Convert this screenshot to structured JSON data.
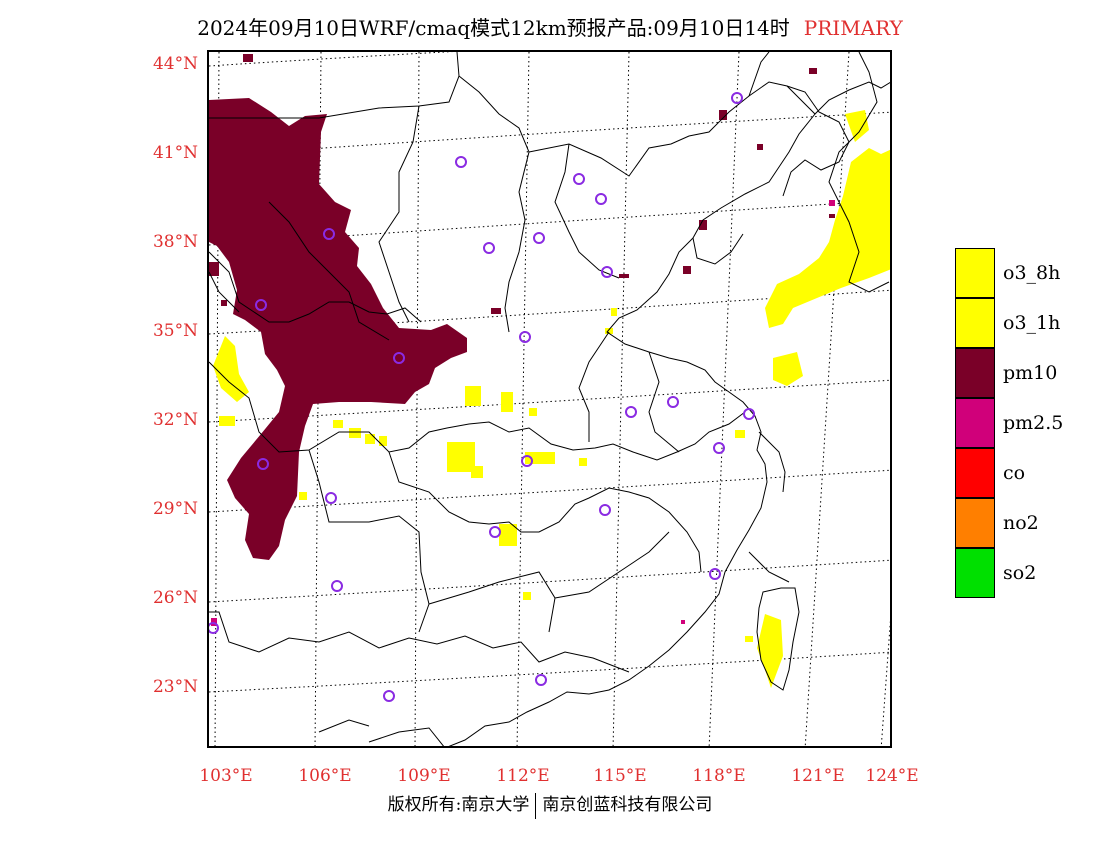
{
  "title": {
    "text": "2024年09月10日WRF/cmaq模式12km预报产品:09月10日14时",
    "tag": "PRIMARY"
  },
  "axes": {
    "lat_labels": [
      "44°N",
      "41°N",
      "38°N",
      "35°N",
      "32°N",
      "29°N",
      "26°N",
      "23°N"
    ],
    "lon_labels": [
      "103°E",
      "106°E",
      "109°E",
      "112°E",
      "115°E",
      "118°E",
      "121°E",
      "124°E"
    ]
  },
  "legend": [
    {
      "label": "o3_8h",
      "color": "#ffff00"
    },
    {
      "label": "o3_1h",
      "color": "#ffff00"
    },
    {
      "label": "pm10",
      "color": "#7a0028"
    },
    {
      "label": "pm2.5",
      "color": "#d0007a"
    },
    {
      "label": "co",
      "color": "#ff0000"
    },
    {
      "label": "no2",
      "color": "#ff7f00"
    },
    {
      "label": "so2",
      "color": "#00e000"
    }
  ],
  "footer": {
    "left": "版权所有:南京大学",
    "right": "南京创蓝科技有限公司"
  },
  "colors": {
    "pm10": "#7a0028",
    "o3": "#ffff00",
    "station_ring": "#8a2be2",
    "accent_red": "#e03030"
  }
}
